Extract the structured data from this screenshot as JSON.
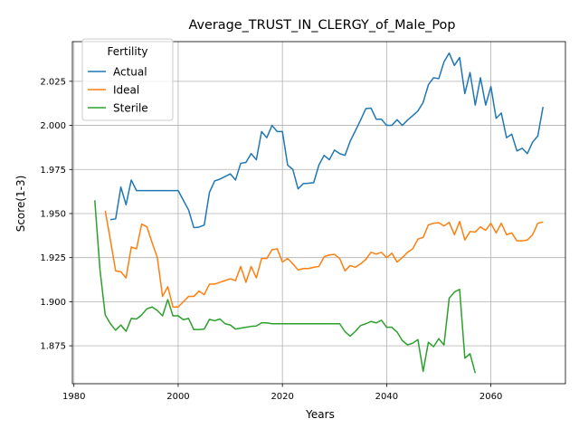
{
  "chart_data": {
    "type": "line",
    "title": "Average_TRUST_IN_CLERGY_of_Male_Pop",
    "xlabel": "Years",
    "ylabel": "Score(1-3)",
    "xlim": [
      1979.7,
      2074.3
    ],
    "ylim": [
      1.8535,
      2.0475
    ],
    "grid": true,
    "legend": {
      "title": "Fertility",
      "placement": "top-left"
    },
    "x_ticks": [
      "1980",
      "2000",
      "2020",
      "2040",
      "2060"
    ],
    "x_tick_values": [
      1980,
      2000,
      2020,
      2040,
      2060
    ],
    "y_ticks": [
      "1.875",
      "1.900",
      "1.925",
      "1.950",
      "1.975",
      "2.000",
      "2.025"
    ],
    "y_tick_values": [
      1.875,
      1.9,
      1.925,
      1.95,
      1.975,
      2.0,
      2.025
    ],
    "series": [
      {
        "name": "Actual",
        "color": "#1f77b4",
        "x": [
          1987,
          1988,
          1989,
          1990,
          1991,
          1992,
          1993,
          1994,
          1995,
          1996,
          1997,
          1998,
          1999,
          2000,
          2001,
          2002,
          2003,
          2004,
          2005,
          2006,
          2007,
          2008,
          2009,
          2010,
          2011,
          2012,
          2013,
          2014,
          2015,
          2016,
          2017,
          2018,
          2019,
          2020,
          2021,
          2022,
          2023,
          2024,
          2025,
          2026,
          2027,
          2028,
          2029,
          2030,
          2031,
          2032,
          2033,
          2034,
          2035,
          2036,
          2037,
          2038,
          2039,
          2040,
          2041,
          2042,
          2043,
          2044,
          2045,
          2046,
          2047,
          2048,
          2049,
          2050,
          2051,
          2052,
          2053,
          2054,
          2055,
          2056,
          2057,
          2058,
          2059,
          2060,
          2061,
          2062,
          2063,
          2064,
          2065,
          2066,
          2067,
          2068,
          2069,
          2070
        ],
        "values": [
          1.9465,
          1.947,
          1.965,
          1.955,
          1.969,
          1.963,
          1.963,
          1.963,
          1.963,
          1.963,
          1.963,
          1.963,
          1.963,
          1.963,
          1.9575,
          1.952,
          1.942,
          1.9423,
          1.9435,
          1.962,
          1.9685,
          1.9695,
          1.971,
          1.9725,
          1.969,
          1.9785,
          1.979,
          1.984,
          1.9805,
          1.9965,
          1.993,
          2.0,
          1.9965,
          1.9965,
          1.9775,
          1.975,
          1.964,
          1.967,
          1.9672,
          1.9675,
          1.9775,
          1.983,
          1.9805,
          1.986,
          1.984,
          1.983,
          1.991,
          1.997,
          2.003,
          2.0095,
          2.0098,
          2.0035,
          2.0035,
          2.0,
          2.0,
          2.0032,
          2.0,
          2.003,
          2.0055,
          2.0082,
          2.013,
          2.023,
          2.027,
          2.0265,
          2.036,
          2.041,
          2.034,
          2.0385,
          2.018,
          2.03,
          2.0115,
          2.027,
          2.0115,
          2.022,
          2.004,
          2.007,
          1.993,
          1.995,
          1.9855,
          1.987,
          1.984,
          1.9905,
          1.994,
          2.0105
        ]
      },
      {
        "name": "Ideal",
        "color": "#ff7f0e",
        "x": [
          1986,
          1987,
          1988,
          1989,
          1990,
          1991,
          1992,
          1993,
          1994,
          1995,
          1996,
          1997,
          1998,
          1999,
          2000,
          2001,
          2002,
          2003,
          2004,
          2005,
          2006,
          2007,
          2008,
          2009,
          2010,
          2011,
          2012,
          2013,
          2014,
          2015,
          2016,
          2017,
          2018,
          2019,
          2020,
          2021,
          2022,
          2023,
          2024,
          2025,
          2026,
          2027,
          2028,
          2029,
          2030,
          2031,
          2032,
          2033,
          2034,
          2035,
          2036,
          2037,
          2038,
          2039,
          2040,
          2041,
          2042,
          2043,
          2044,
          2045,
          2046,
          2047,
          2048,
          2049,
          2050,
          2051,
          2052,
          2053,
          2054,
          2055,
          2056,
          2057,
          2058,
          2059,
          2060,
          2061,
          2062,
          2063,
          2064,
          2065,
          2066,
          2067,
          2068,
          2069,
          2070
        ],
        "values": [
          1.9515,
          1.935,
          1.9175,
          1.917,
          1.9135,
          1.931,
          1.93,
          1.944,
          1.9425,
          1.9335,
          1.925,
          1.903,
          1.9085,
          1.897,
          1.897,
          1.9,
          1.903,
          1.903,
          1.906,
          1.904,
          1.91,
          1.91,
          1.911,
          1.912,
          1.913,
          1.912,
          1.92,
          1.911,
          1.92,
          1.9135,
          1.9245,
          1.9245,
          1.9295,
          1.93,
          1.9225,
          1.9245,
          1.9215,
          1.918,
          1.9188,
          1.9188,
          1.9195,
          1.92,
          1.9255,
          1.9265,
          1.9268,
          1.9245,
          1.9175,
          1.9205,
          1.9195,
          1.9215,
          1.924,
          1.928,
          1.927,
          1.928,
          1.925,
          1.9275,
          1.9225,
          1.925,
          1.928,
          1.93,
          1.9355,
          1.9365,
          1.9435,
          1.9445,
          1.9448,
          1.943,
          1.945,
          1.938,
          1.9455,
          1.935,
          1.9398,
          1.9395,
          1.9425,
          1.9405,
          1.9445,
          1.939,
          1.9445,
          1.938,
          1.939,
          1.9345,
          1.9345,
          1.935,
          1.938,
          1.9445,
          1.9452
        ]
      },
      {
        "name": "Sterile",
        "color": "#2ca02c",
        "x": [
          1984,
          1985,
          1986,
          1987,
          1988,
          1989,
          1990,
          1991,
          1992,
          1993,
          1994,
          1995,
          1996,
          1997,
          1998,
          1999,
          2000,
          2001,
          2002,
          2003,
          2004,
          2005,
          2006,
          2007,
          2008,
          2009,
          2010,
          2011,
          2012,
          2013,
          2014,
          2015,
          2016,
          2017,
          2018,
          2019,
          2020,
          2021,
          2022,
          2023,
          2024,
          2025,
          2026,
          2027,
          2028,
          2029,
          2030,
          2031,
          2032,
          2033,
          2034,
          2035,
          2036,
          2037,
          2038,
          2039,
          2040,
          2041,
          2042,
          2043,
          2044,
          2045,
          2046,
          2047,
          2048,
          2049,
          2050,
          2051,
          2052,
          2053,
          2054,
          2055,
          2056,
          2057
        ],
        "values": [
          1.9575,
          1.918,
          1.8925,
          1.8875,
          1.8838,
          1.8868,
          1.8832,
          1.8905,
          1.8902,
          1.8925,
          1.896,
          1.897,
          1.895,
          1.892,
          1.9012,
          1.892,
          1.892,
          1.8898,
          1.8905,
          1.8842,
          1.8842,
          1.8845,
          1.89,
          1.8892,
          1.8902,
          1.8875,
          1.8868,
          1.8845,
          1.885,
          1.8855,
          1.886,
          1.8862,
          1.888,
          1.888,
          1.8875,
          1.8875,
          1.8875,
          1.8875,
          1.8875,
          1.8875,
          1.8875,
          1.8875,
          1.8875,
          1.8875,
          1.8875,
          1.8875,
          1.8875,
          1.8875,
          1.883,
          1.8805,
          1.8832,
          1.8865,
          1.8875,
          1.8888,
          1.888,
          1.8895,
          1.8855,
          1.8855,
          1.8828,
          1.878,
          1.8755,
          1.8765,
          1.8785,
          1.8605,
          1.877,
          1.8745,
          1.879,
          1.8755,
          1.902,
          1.9055,
          1.907,
          1.868,
          1.8705,
          1.8595
        ]
      }
    ]
  }
}
